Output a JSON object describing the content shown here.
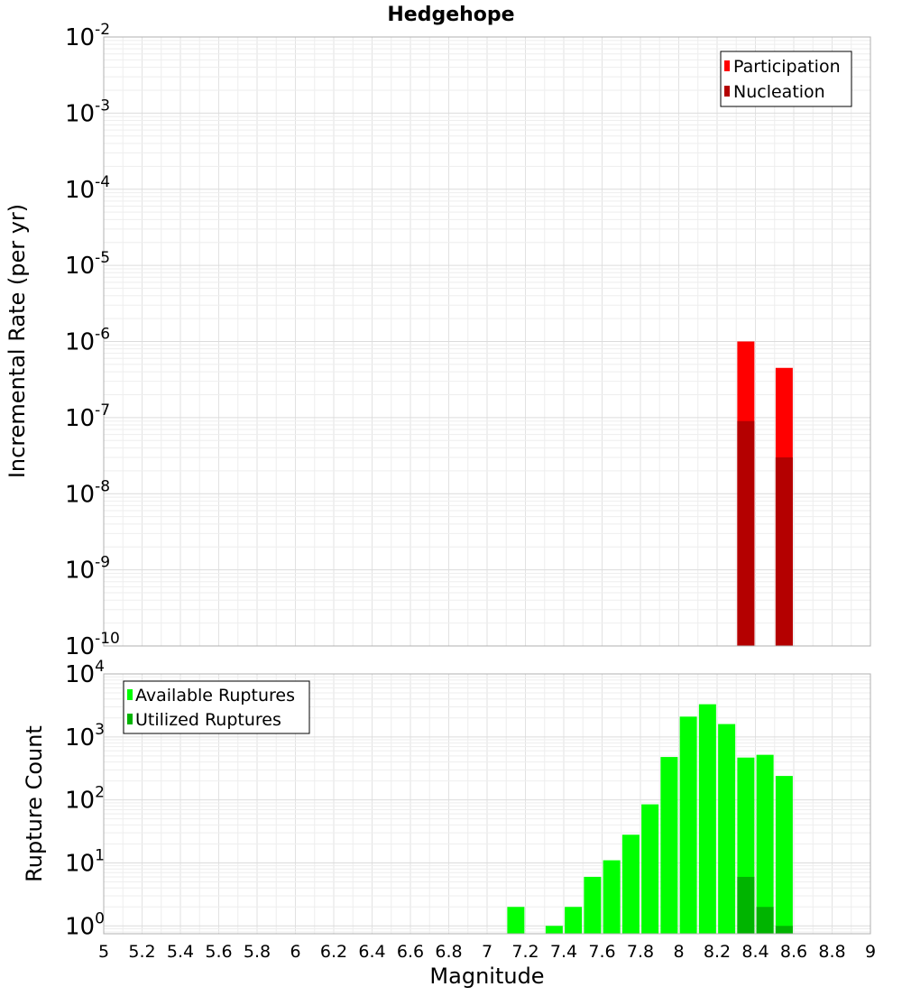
{
  "title": "Hedgehope",
  "xlabel": "Magnitude",
  "chart_data": [
    {
      "type": "bar",
      "scale": "log",
      "title": "Hedgehope",
      "xlabel": "Magnitude",
      "ylabel": "Incremental Rate (per yr)",
      "xlim": [
        5,
        9
      ],
      "ylim": [
        1e-10,
        0.01
      ],
      "x_ticks": [
        "5",
        "5.2",
        "5.4",
        "5.6",
        "5.8",
        "6",
        "6.2",
        "6.4",
        "6.6",
        "6.8",
        "7",
        "7.2",
        "7.4",
        "7.6",
        "7.8",
        "8",
        "8.2",
        "8.4",
        "8.6",
        "8.8",
        "9"
      ],
      "y_ticks": [
        {
          "base": "10",
          "exp": "-10"
        },
        {
          "base": "10",
          "exp": "-9"
        },
        {
          "base": "10",
          "exp": "-8"
        },
        {
          "base": "10",
          "exp": "-7"
        },
        {
          "base": "10",
          "exp": "-6"
        },
        {
          "base": "10",
          "exp": "-5"
        },
        {
          "base": "10",
          "exp": "-4"
        },
        {
          "base": "10",
          "exp": "-3"
        },
        {
          "base": "10",
          "exp": "-2"
        }
      ],
      "legend_position": "top-right",
      "grid": true,
      "series": [
        {
          "name": "Participation",
          "color": "#ff0000",
          "points": [
            [
              8.35,
              1e-06
            ],
            [
              8.55,
              4.5e-07
            ]
          ]
        },
        {
          "name": "Nucleation",
          "color": "#b40000",
          "points": [
            [
              8.35,
              9e-08
            ],
            [
              8.55,
              3e-08
            ]
          ]
        }
      ]
    },
    {
      "type": "bar",
      "scale": "log",
      "xlabel": "Magnitude",
      "ylabel": "Rupture Count",
      "xlim": [
        5,
        9
      ],
      "ylim": [
        0.75,
        10000
      ],
      "y_ticks": [
        {
          "base": "10",
          "exp": "0"
        },
        {
          "base": "10",
          "exp": "1"
        },
        {
          "base": "10",
          "exp": "2"
        },
        {
          "base": "10",
          "exp": "3"
        },
        {
          "base": "10",
          "exp": "4"
        }
      ],
      "legend_position": "top-left",
      "grid": true,
      "series": [
        {
          "name": "Available Ruptures",
          "color": "#00ff00",
          "points": [
            [
              7.15,
              2
            ],
            [
              7.35,
              1
            ],
            [
              7.45,
              2
            ],
            [
              7.55,
              6
            ],
            [
              7.65,
              11
            ],
            [
              7.75,
              28
            ],
            [
              7.85,
              85
            ],
            [
              7.95,
              480
            ],
            [
              8.05,
              2100
            ],
            [
              8.15,
              3300
            ],
            [
              8.25,
              1600
            ],
            [
              8.35,
              470
            ],
            [
              8.45,
              520
            ],
            [
              8.55,
              240
            ]
          ]
        },
        {
          "name": "Utilized Ruptures",
          "color": "#00b400",
          "points": [
            [
              8.35,
              6
            ],
            [
              8.45,
              2
            ],
            [
              8.55,
              1
            ]
          ]
        }
      ]
    }
  ]
}
